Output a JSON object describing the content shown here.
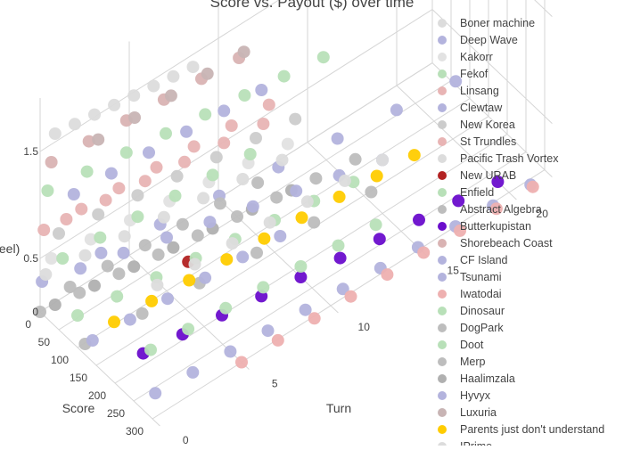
{
  "chart_data": {
    "type": "scatter",
    "title": "Score vs. Payout ($) over time",
    "axes": {
      "turn": {
        "label": "Turn",
        "ticks": [
          "0",
          "5",
          "10",
          "15",
          "20"
        ],
        "range": [
          0,
          22
        ]
      },
      "score": {
        "label": "Score",
        "ticks": [
          "0",
          "50",
          "100",
          "150",
          "200",
          "250",
          "300"
        ],
        "range": [
          0,
          320
        ]
      },
      "payout": {
        "label": "Payout ($, Steel)",
        "visible_label": "teel)",
        "ticks": [
          "0",
          "0.5",
          "1.5"
        ],
        "range": [
          0,
          2
        ]
      }
    },
    "grid": true,
    "legend_position": "right",
    "series": [
      {
        "name": "Boner machine",
        "color": "#dcdcdc",
        "points": [
          [
            0,
            40,
            1.8
          ],
          [
            1,
            45,
            1.8
          ],
          [
            2,
            50,
            1.8
          ],
          [
            3,
            55,
            1.8
          ],
          [
            4,
            60,
            1.8
          ],
          [
            5,
            65,
            1.8
          ],
          [
            6,
            70,
            1.8
          ],
          [
            7,
            75,
            1.8
          ]
        ]
      },
      {
        "name": "Deep Wave",
        "color": "#b3b3dd",
        "points": [
          [
            1,
            60,
            0.5
          ],
          [
            3,
            80,
            0.5
          ],
          [
            5,
            100,
            0.5
          ],
          [
            7,
            120,
            0.5
          ],
          [
            9,
            140,
            0.5
          ],
          [
            11,
            160,
            0.5
          ],
          [
            13,
            180,
            0.5
          ],
          [
            15,
            200,
            0.5
          ]
        ]
      },
      {
        "name": "Kakorr",
        "color": "#e2e2e2",
        "points": [
          [
            0,
            30,
            0.6
          ],
          [
            2,
            40,
            0.6
          ],
          [
            4,
            50,
            0.6
          ],
          [
            6,
            60,
            0.6
          ],
          [
            8,
            70,
            0.6
          ],
          [
            10,
            80,
            0.6
          ],
          [
            12,
            90,
            0.6
          ]
        ]
      },
      {
        "name": "Fekof",
        "color": "#b8e0b8",
        "points": [
          [
            0,
            20,
            1.2
          ],
          [
            2,
            30,
            1.2
          ],
          [
            4,
            40,
            1.2
          ],
          [
            6,
            50,
            1.2
          ],
          [
            8,
            60,
            1.2
          ],
          [
            10,
            70,
            1.2
          ],
          [
            12,
            80,
            1.2
          ],
          [
            14,
            90,
            1.2
          ]
        ]
      },
      {
        "name": "Linsang",
        "color": "#e8b4b4",
        "points": [
          [
            0,
            10,
            0.8
          ],
          [
            2,
            15,
            0.8
          ],
          [
            4,
            20,
            0.8
          ],
          [
            6,
            25,
            0.8
          ],
          [
            8,
            30,
            0.8
          ],
          [
            10,
            35,
            0.8
          ],
          [
            12,
            40,
            0.8
          ]
        ]
      },
      {
        "name": "Clewtaw",
        "color": "#b3b3dd",
        "points": [
          [
            0,
            5,
            0.3
          ],
          [
            3,
            20,
            0.3
          ],
          [
            6,
            35,
            0.3
          ],
          [
            9,
            50,
            0.3
          ],
          [
            12,
            65,
            0.3
          ],
          [
            15,
            80,
            0.3
          ],
          [
            18,
            95,
            0.3
          ],
          [
            21,
            110,
            0.3
          ]
        ]
      },
      {
        "name": "New Korea",
        "color": "#cccccc",
        "points": [
          [
            0,
            50,
            0.9
          ],
          [
            2,
            60,
            0.9
          ],
          [
            4,
            70,
            0.9
          ],
          [
            6,
            80,
            0.9
          ],
          [
            8,
            90,
            0.9
          ],
          [
            10,
            100,
            0.9
          ],
          [
            12,
            110,
            0.9
          ]
        ]
      },
      {
        "name": "St Trundles",
        "color": "#e8b4b4",
        "points": [
          [
            0,
            70,
            1.1
          ],
          [
            2,
            80,
            1.1
          ],
          [
            4,
            90,
            1.1
          ],
          [
            6,
            100,
            1.1
          ],
          [
            8,
            110,
            1.1
          ],
          [
            10,
            120,
            1.1
          ]
        ]
      },
      {
        "name": "Pacific Trash Vortex",
        "color": "#dcdcdc",
        "points": [
          [
            0,
            15,
            0.4
          ],
          [
            2,
            25,
            0.4
          ],
          [
            4,
            35,
            0.4
          ],
          [
            6,
            45,
            0.4
          ],
          [
            8,
            55,
            0.4
          ],
          [
            10,
            65,
            0.4
          ],
          [
            12,
            75,
            0.4
          ]
        ]
      },
      {
        "name": "New URAB",
        "color": "#b22222",
        "points": [
          [
            6,
            110,
            0.2
          ]
        ]
      },
      {
        "name": "Enfield",
        "color": "#b8e0b8",
        "points": [
          [
            0,
            100,
            0.3
          ],
          [
            2,
            110,
            0.3
          ],
          [
            4,
            120,
            0.3
          ],
          [
            6,
            130,
            0.3
          ],
          [
            8,
            140,
            0.3
          ],
          [
            10,
            150,
            0.3
          ],
          [
            12,
            160,
            0.3
          ],
          [
            14,
            170,
            0.3
          ]
        ]
      },
      {
        "name": "Abstract Algebra",
        "color": "#bdbdbd",
        "points": [
          [
            0,
            0,
            0
          ],
          [
            2,
            10,
            0
          ],
          [
            4,
            20,
            0
          ],
          [
            6,
            30,
            0
          ],
          [
            8,
            40,
            0
          ],
          [
            10,
            50,
            0
          ],
          [
            12,
            60,
            0
          ],
          [
            14,
            70,
            0
          ],
          [
            16,
            80,
            0
          ]
        ]
      },
      {
        "name": "Butterkupistan",
        "color": "#6a0dcc",
        "points": [
          [
            2,
            180,
            0
          ],
          [
            4,
            190,
            0
          ],
          [
            6,
            200,
            0
          ],
          [
            8,
            210,
            0
          ],
          [
            10,
            220,
            0
          ],
          [
            12,
            230,
            0
          ],
          [
            14,
            240,
            0
          ],
          [
            16,
            250,
            0
          ],
          [
            18,
            260,
            0
          ],
          [
            20,
            270,
            0
          ]
        ]
      },
      {
        "name": "Shorebeach Coast",
        "color": "#d9b3b3",
        "points": [
          [
            0,
            30,
            1.5
          ],
          [
            2,
            35,
            1.5
          ],
          [
            4,
            40,
            1.5
          ],
          [
            6,
            45,
            1.5
          ],
          [
            8,
            50,
            1.5
          ],
          [
            10,
            55,
            1.5
          ]
        ]
      },
      {
        "name": "CF Island",
        "color": "#b3b3dd",
        "points": [
          [
            0,
            90,
            1.4
          ],
          [
            2,
            95,
            1.4
          ],
          [
            4,
            100,
            1.4
          ],
          [
            6,
            105,
            1.4
          ],
          [
            8,
            110,
            1.4
          ],
          [
            10,
            115,
            1.4
          ]
        ]
      },
      {
        "name": "Tsunami",
        "color": "#b3b3dd",
        "points": [
          [
            1,
            260,
            0
          ],
          [
            3,
            265,
            0
          ],
          [
            5,
            270,
            0
          ],
          [
            7,
            275,
            0
          ],
          [
            9,
            280,
            0
          ],
          [
            11,
            285,
            0
          ],
          [
            13,
            290,
            0
          ],
          [
            15,
            295,
            0
          ],
          [
            17,
            300,
            0
          ],
          [
            19,
            305,
            0
          ],
          [
            21,
            310,
            0
          ]
        ]
      },
      {
        "name": "Iwatodai",
        "color": "#eeb0b0",
        "points": [
          [
            5,
            300,
            0
          ],
          [
            7,
            302,
            0
          ],
          [
            9,
            304,
            0
          ],
          [
            11,
            306,
            0
          ],
          [
            13,
            308,
            0
          ],
          [
            15,
            310,
            0
          ],
          [
            17,
            312,
            0
          ],
          [
            19,
            314,
            0
          ],
          [
            21,
            316,
            0
          ]
        ]
      },
      {
        "name": "Dinosaur",
        "color": "#b8e0b8",
        "points": [
          [
            2,
            200,
            0.1
          ],
          [
            4,
            205,
            0.1
          ],
          [
            6,
            210,
            0.1
          ],
          [
            8,
            215,
            0.1
          ],
          [
            10,
            220,
            0.1
          ],
          [
            12,
            225,
            0.1
          ],
          [
            14,
            230,
            0.1
          ]
        ]
      },
      {
        "name": "DogPark",
        "color": "#bdbdbd",
        "points": [
          [
            0,
            120,
            0.1
          ],
          [
            3,
            130,
            0.1
          ],
          [
            6,
            140,
            0.1
          ],
          [
            9,
            150,
            0.1
          ],
          [
            12,
            160,
            0.1
          ],
          [
            15,
            170,
            0.1
          ]
        ]
      },
      {
        "name": "Doot",
        "color": "#b8e0b8",
        "points": [
          [
            0,
            60,
            0.7
          ],
          [
            2,
            65,
            0.7
          ],
          [
            4,
            70,
            0.7
          ],
          [
            6,
            75,
            0.7
          ],
          [
            8,
            80,
            0.7
          ],
          [
            10,
            85,
            0.7
          ]
        ]
      },
      {
        "name": "Merp",
        "color": "#bdbdbd",
        "points": [
          [
            0,
            80,
            0.5
          ],
          [
            2,
            85,
            0.5
          ],
          [
            4,
            90,
            0.5
          ],
          [
            6,
            95,
            0.5
          ],
          [
            8,
            100,
            0.5
          ],
          [
            10,
            105,
            0.5
          ]
        ]
      },
      {
        "name": "Haalimzala",
        "color": "#b0b0b0",
        "points": [
          [
            0,
            40,
            0.2
          ],
          [
            2,
            50,
            0.2
          ],
          [
            4,
            60,
            0.2
          ],
          [
            6,
            70,
            0.2
          ],
          [
            8,
            80,
            0.2
          ],
          [
            10,
            90,
            0.2
          ],
          [
            12,
            100,
            0.2
          ]
        ]
      },
      {
        "name": "Hyvyx",
        "color": "#b3b3dd",
        "points": [
          [
            0,
            140,
            0.2
          ],
          [
            2,
            145,
            0.2
          ],
          [
            4,
            150,
            0.2
          ],
          [
            6,
            155,
            0.2
          ],
          [
            8,
            160,
            0.2
          ],
          [
            10,
            165,
            0.2
          ]
        ]
      },
      {
        "name": "Luxuria",
        "color": "#c8b4b4",
        "points": [
          [
            2,
            60,
            1.6
          ],
          [
            4,
            62,
            1.6
          ],
          [
            6,
            64,
            1.6
          ],
          [
            8,
            66,
            1.6
          ],
          [
            10,
            68,
            1.6
          ]
        ]
      },
      {
        "name": "Parents just don't understand",
        "color": "#ffcc00",
        "points": [
          [
            1,
            150,
            0.3
          ],
          [
            3,
            155,
            0.3
          ],
          [
            5,
            160,
            0.3
          ],
          [
            7,
            165,
            0.3
          ],
          [
            9,
            170,
            0.3
          ],
          [
            11,
            175,
            0.3
          ],
          [
            13,
            180,
            0.3
          ],
          [
            15,
            185,
            0.3
          ],
          [
            17,
            190,
            0.3
          ]
        ]
      },
      {
        "name": "IPrime",
        "color": "#dcdcdc",
        "points": [
          [
            3,
            170,
            0.5
          ],
          [
            5,
            175,
            0.5
          ],
          [
            7,
            180,
            0.5
          ],
          [
            9,
            185,
            0.5
          ],
          [
            11,
            190,
            0.5
          ],
          [
            13,
            195,
            0.5
          ],
          [
            15,
            200,
            0.5
          ]
        ]
      }
    ]
  }
}
